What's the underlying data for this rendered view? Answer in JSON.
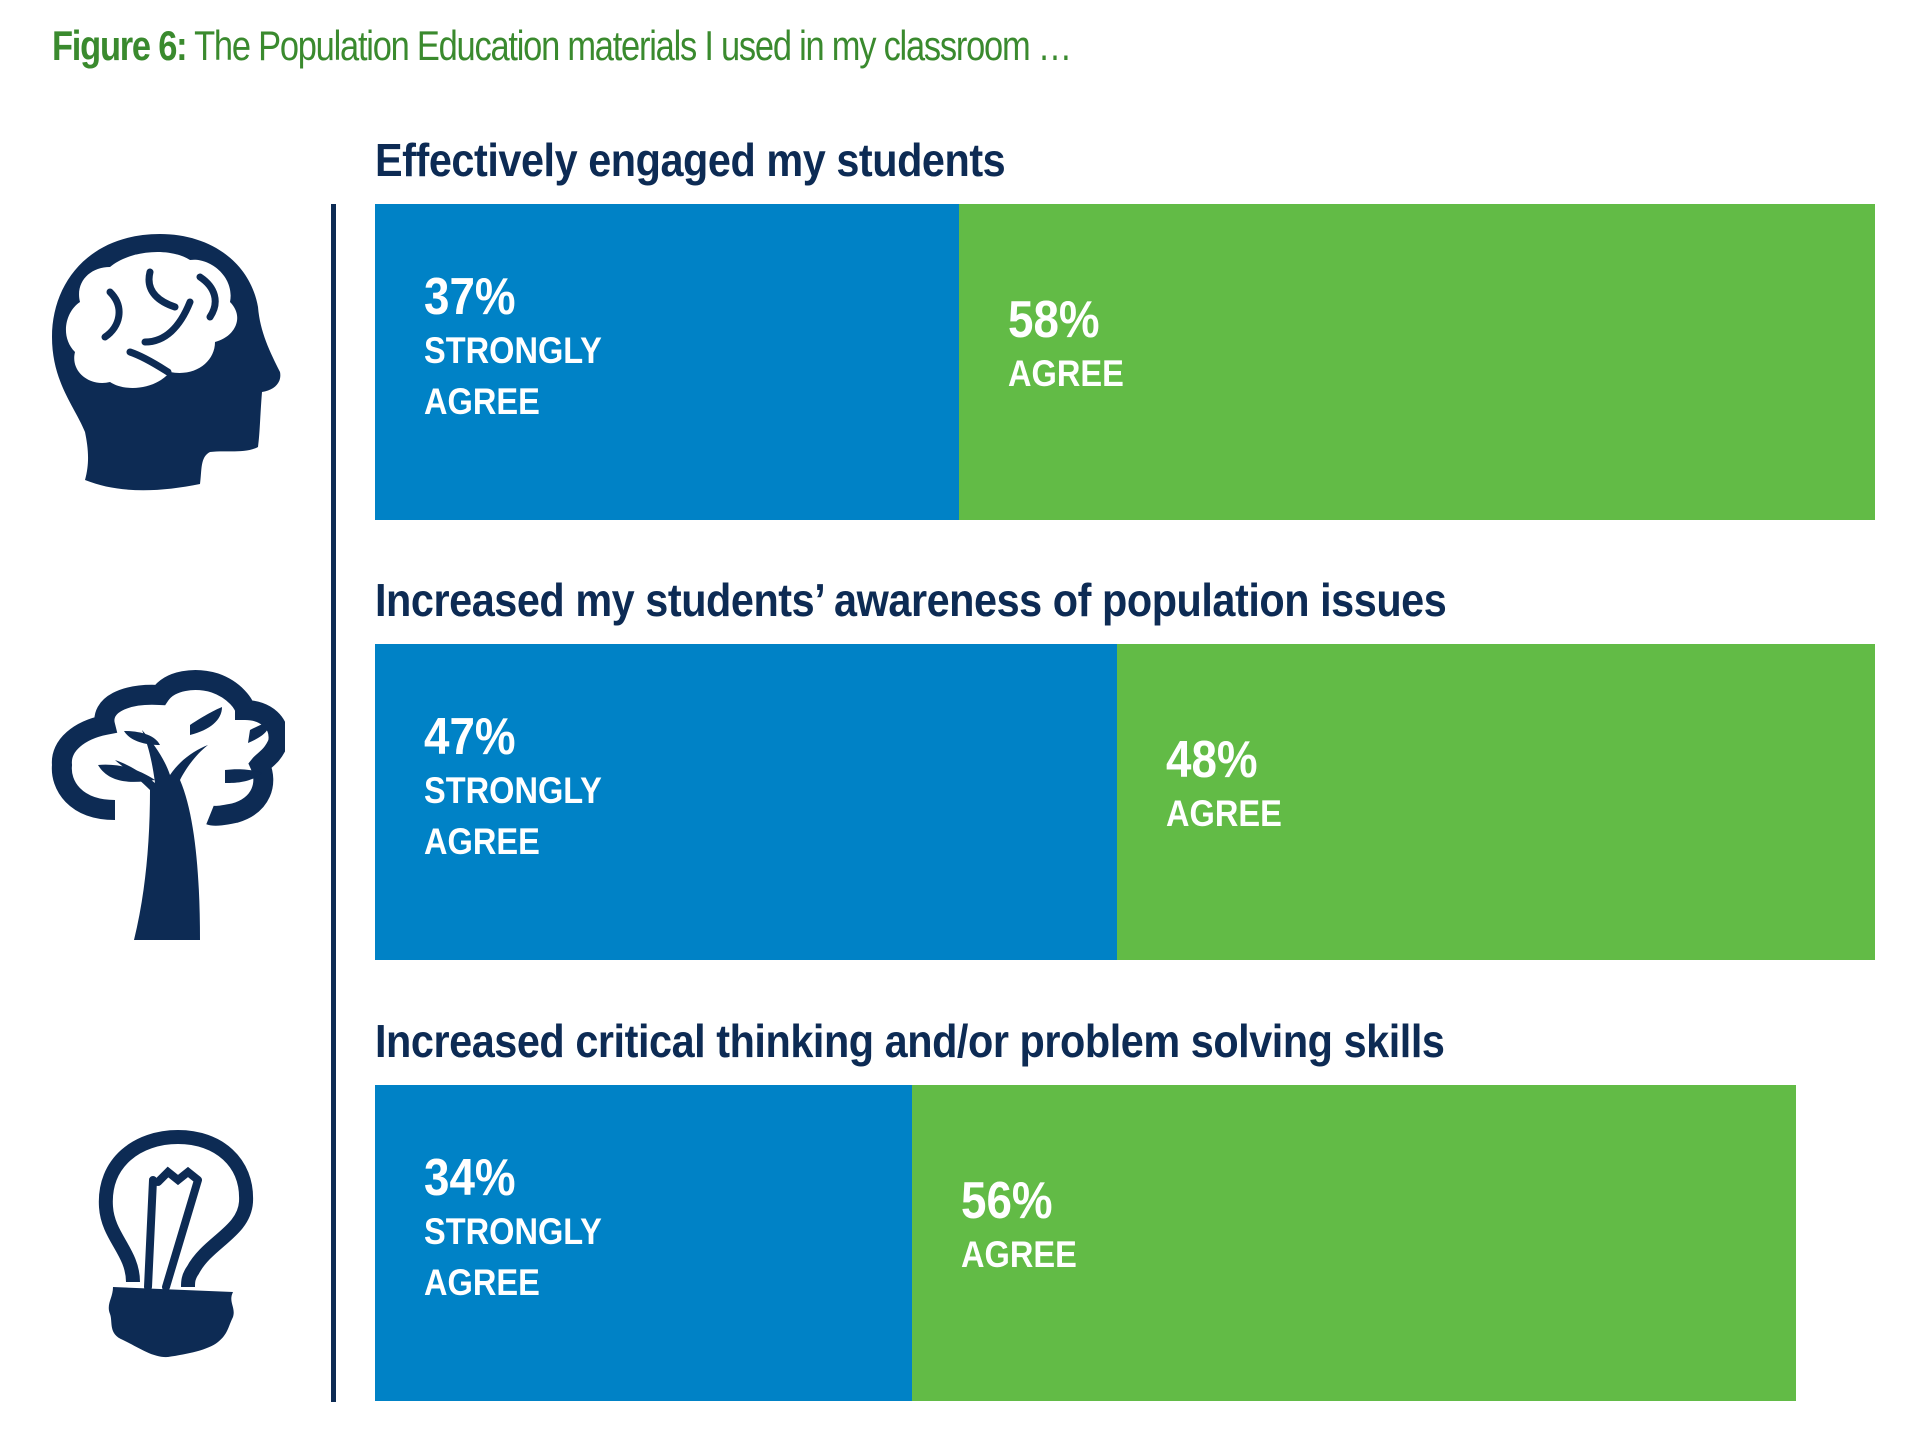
{
  "figure_label": "Figure 6:",
  "figure_title": "The Population Education materials I used in my classroom …",
  "colors": {
    "strongly_agree": "#0082c6",
    "agree": "#62bb46",
    "title": "#3a8a2e",
    "navy": "#0d2b54"
  },
  "chart_data": {
    "type": "bar",
    "orientation": "horizontal-stacked",
    "title": "The Population Education materials I used in my classroom …",
    "categories": [
      "Effectively engaged my students",
      "Increased my students’ awareness of population issues",
      "Increased critical thinking and/or problem solving skills"
    ],
    "icons": [
      "brain-head-icon",
      "tree-icon",
      "lightbulb-icon"
    ],
    "series": [
      {
        "name": "STRONGLY AGREE",
        "values": [
          37,
          47,
          34
        ],
        "labels": [
          "37%",
          "47%",
          "34%"
        ]
      },
      {
        "name": "AGREE",
        "values": [
          58,
          48,
          56
        ],
        "labels": [
          "58%",
          "48%",
          "56%"
        ]
      }
    ],
    "xlim": [
      0,
      100
    ],
    "grid": false,
    "legend": "none"
  }
}
